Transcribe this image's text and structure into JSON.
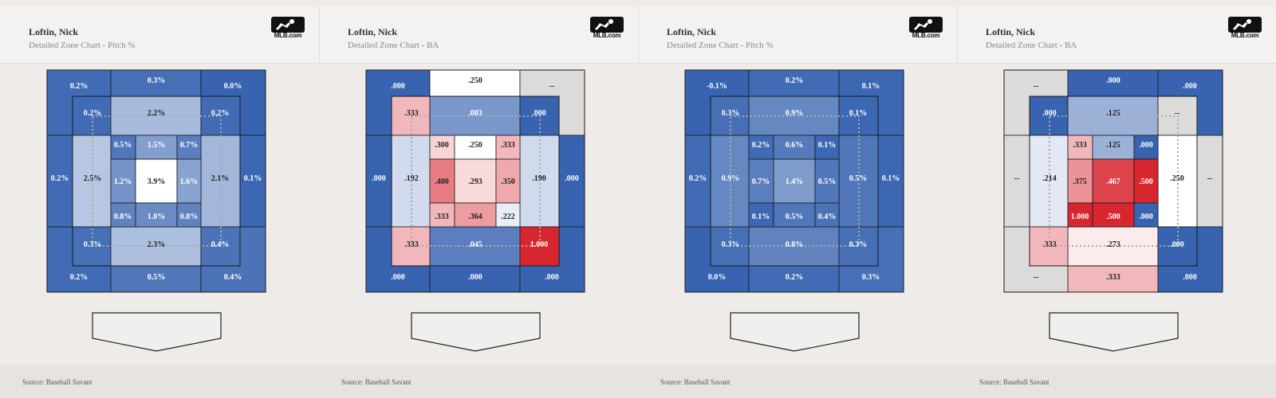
{
  "panels": [
    {
      "player": "Loftin, Nick",
      "title": "Detailed Zone Chart - Pitch %",
      "logo_text": "MLB.com",
      "source": "Source: Baseball Savant",
      "metric": "pitch_pct",
      "values": {
        "outer_tl": "0.2%",
        "outer_top": "0.3%",
        "outer_tr": "0.0%",
        "outer_left": "0.2%",
        "outer_right": "0.1%",
        "outer_bl": "0.2%",
        "outer_bottom": "0.5%",
        "outer_br": "0.4%",
        "mid_tl": "0.2%",
        "mid_top": "2.2%",
        "mid_tr": "0.2%",
        "mid_left": "2.5%",
        "mid_right": "2.1%",
        "mid_bl": "0.3%",
        "mid_bottom": "2.3%",
        "mid_br": "0.4%",
        "in_tl": "0.5%",
        "in_tc": "1.5%",
        "in_tr": "0.7%",
        "in_ml": "1.2%",
        "in_c": "3.9%",
        "in_mr": "1.6%",
        "in_bl": "0.8%",
        "in_bc": "1.0%",
        "in_br": "0.8%"
      }
    },
    {
      "player": "Loftin, Nick",
      "title": "Detailed Zone Chart - BA",
      "logo_text": "MLB.com",
      "source": "Source: Baseball Savant",
      "metric": "ba",
      "values": {
        "outer_tl": ".000",
        "outer_top": ".250",
        "outer_tr": "--",
        "outer_left": ".000",
        "outer_right": ".000",
        "outer_bl": ".000",
        "outer_bottom": ".000",
        "outer_br": ".000",
        "mid_tl": ".333",
        "mid_top": ".083",
        "mid_tr": ".000",
        "mid_left": ".192",
        "mid_right": ".190",
        "mid_bl": ".333",
        "mid_bottom": ".045",
        "mid_br": "1.000",
        "in_tl": ".300",
        "in_tc": ".250",
        "in_tr": ".333",
        "in_ml": ".400",
        "in_c": ".293",
        "in_mr": ".350",
        "in_bl": ".333",
        "in_bc": ".364",
        "in_br": ".222"
      }
    },
    {
      "player": "Loftin, Nick",
      "title": "Detailed Zone Chart - Pitch %",
      "logo_text": "MLB.com",
      "source": "Source: Baseball Savant",
      "metric": "pitch_pct",
      "values": {
        "outer_tl": "-0.1%",
        "outer_top": "0.2%",
        "outer_tr": "0.1%",
        "outer_left": "0.2%",
        "outer_right": "0.1%",
        "outer_bl": "0.0%",
        "outer_bottom": "0.2%",
        "outer_br": "0.3%",
        "mid_tl": "0.3%",
        "mid_top": "0.9%",
        "mid_tr": "0.1%",
        "mid_left": "0.9%",
        "mid_right": "0.5%",
        "mid_bl": "0.3%",
        "mid_bottom": "0.8%",
        "mid_br": "0.3%",
        "in_tl": "0.2%",
        "in_tc": "0.6%",
        "in_tr": "0.1%",
        "in_ml": "0.7%",
        "in_c": "1.4%",
        "in_mr": "0.5%",
        "in_bl": "0.1%",
        "in_bc": "0.5%",
        "in_br": "0.4%"
      }
    },
    {
      "player": "Loftin, Nick",
      "title": "Detailed Zone Chart - BA",
      "logo_text": "MLB.com",
      "source": "Source: Baseball Savant",
      "metric": "ba",
      "values": {
        "outer_tl": "--",
        "outer_top": ".000",
        "outer_tr": ".000",
        "outer_left": "--",
        "outer_right": "--",
        "outer_bl": "--",
        "outer_bottom": ".333",
        "outer_br": ".000",
        "mid_tl": ".000",
        "mid_top": ".125",
        "mid_tr": "--",
        "mid_left": ".214",
        "mid_right": ".250",
        "mid_bl": ".333",
        "mid_bottom": ".273",
        "mid_br": ".000",
        "in_tl": ".333",
        "in_tc": ".125",
        "in_tr": ".000",
        "in_ml": ".375",
        "in_c": ".467",
        "in_mr": ".500",
        "in_bl": "1.000",
        "in_bc": ".500",
        "in_br": ".000"
      }
    }
  ],
  "chart_data": [
    {
      "type": "heatmap",
      "title": "Detailed Zone Chart - Pitch %",
      "player": "Loftin, Nick"
    },
    {
      "type": "heatmap",
      "title": "Detailed Zone Chart - BA",
      "player": "Loftin, Nick"
    },
    {
      "type": "heatmap",
      "title": "Detailed Zone Chart - Pitch %",
      "player": "Loftin, Nick"
    },
    {
      "type": "heatmap",
      "title": "Detailed Zone Chart - BA",
      "player": "Loftin, Nick"
    }
  ],
  "colors": {
    "low": "#3763b0",
    "mid": "#ffffff",
    "high": "#d7262e",
    "nodata": "#dcdbd9",
    "dotted_guide": "#aaaaaa"
  }
}
